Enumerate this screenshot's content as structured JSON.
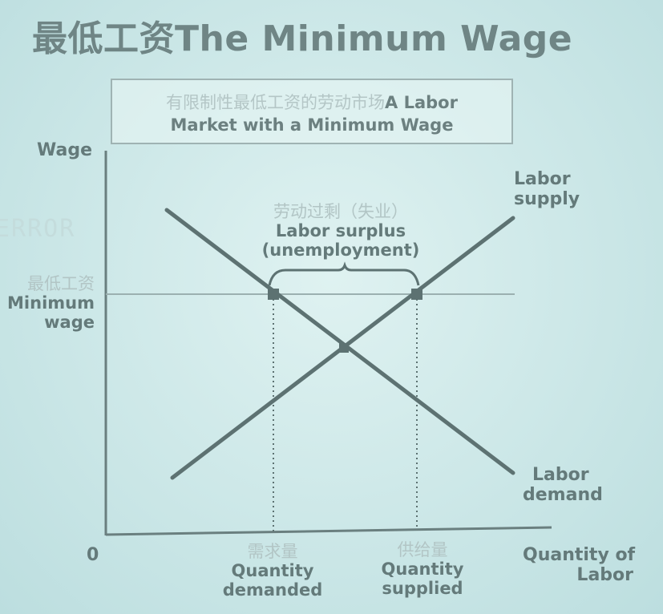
{
  "title": "最低工资The Minimum Wage",
  "caption": {
    "line1_cn": "有限制性最低工资的劳动市场",
    "line1_en": "A Labor",
    "line2": "Market with a Minimum Wage"
  },
  "ghost_text": "ERROR",
  "axes": {
    "y_label": "Wage",
    "x_label_line1": "Quantity of",
    "x_label_line2": "Labor",
    "origin": "0"
  },
  "minimum_wage": {
    "cn": "最低工资",
    "en_line1": "Minimum",
    "en_line2": "wage"
  },
  "surplus": {
    "cn": "劳动过剩（失业）",
    "en_line1": "Labor surplus",
    "en_line2": "(unemployment)"
  },
  "supply_label": {
    "line1": "Labor",
    "line2": "supply"
  },
  "demand_label": {
    "line1": "Labor",
    "line2": "demand"
  },
  "qty_demanded": {
    "cn": "需求量",
    "line1": "Quantity",
    "line2": "demanded"
  },
  "qty_supplied": {
    "cn": "供给量",
    "line1": "Quantity",
    "line2": "supplied"
  },
  "colors": {
    "curve": "#5d7272",
    "axis": "#6a7f7f",
    "min_wage_line": "#9bb0b0",
    "text": "#647a7a",
    "faint": "#b2c5c5"
  }
}
